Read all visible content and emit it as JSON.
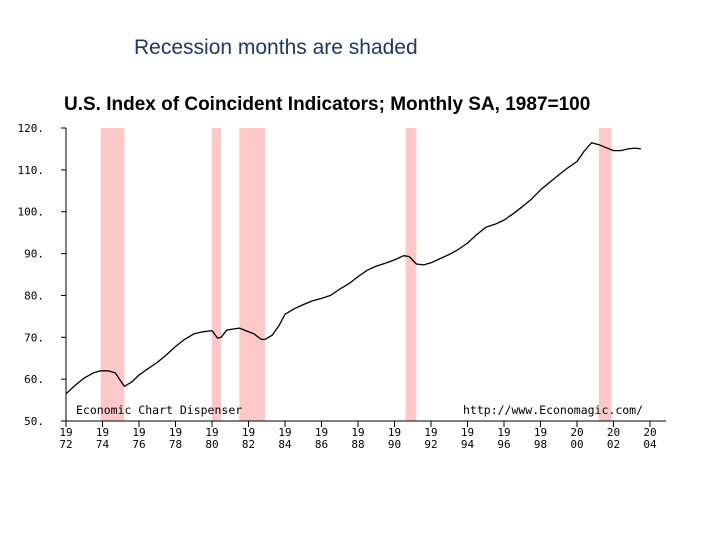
{
  "caption": "Recession months are shaded",
  "chart_data": {
    "type": "line",
    "title": "U.S. Index of Coincident Indicators; Monthly SA, 1987=100",
    "xlim": [
      1972,
      2004
    ],
    "ylim": [
      50,
      120
    ],
    "y_ticks": [
      50,
      60,
      70,
      80,
      90,
      100,
      110,
      120
    ],
    "y_tick_labels": [
      "50.",
      "60.",
      "70.",
      "80.",
      "90.",
      "100.",
      "110.",
      "120."
    ],
    "x_ticks": [
      1972,
      1974,
      1976,
      1978,
      1980,
      1982,
      1984,
      1986,
      1988,
      1990,
      1992,
      1994,
      1996,
      1998,
      2000,
      2002,
      2004
    ],
    "x_tick_top": [
      "19",
      "19",
      "19",
      "19",
      "19",
      "19",
      "19",
      "19",
      "19",
      "19",
      "19",
      "19",
      "19",
      "19",
      "20",
      "20",
      "20"
    ],
    "x_tick_bottom": [
      "72",
      "74",
      "76",
      "78",
      "80",
      "82",
      "84",
      "86",
      "88",
      "90",
      "92",
      "94",
      "96",
      "98",
      "00",
      "02",
      "04"
    ],
    "recession_color": "#ffc8c8",
    "line_color": "#000000",
    "recessions": [
      {
        "start": 1973.9,
        "end": 1975.2
      },
      {
        "start": 1980.0,
        "end": 1980.5
      },
      {
        "start": 1981.5,
        "end": 1982.9
      },
      {
        "start": 1990.6,
        "end": 1991.2
      },
      {
        "start": 2001.2,
        "end": 2001.9
      }
    ],
    "series": [
      {
        "x": [
          1972.0,
          1972.5,
          1973.0,
          1973.5,
          1973.9,
          1974.3,
          1974.7,
          1975.0,
          1975.2,
          1975.6,
          1976.0,
          1976.5,
          1977.0,
          1977.5,
          1978.0,
          1978.5,
          1979.0,
          1979.5,
          1980.0,
          1980.3,
          1980.5,
          1980.8,
          1981.2,
          1981.5,
          1981.9,
          1982.3,
          1982.7,
          1982.9,
          1983.3,
          1983.7,
          1984.0,
          1984.5,
          1985.0,
          1985.5,
          1986.0,
          1986.5,
          1987.0,
          1987.5,
          1988.0,
          1988.5,
          1989.0,
          1989.5,
          1990.0,
          1990.5,
          1990.8,
          1991.2,
          1991.6,
          1992.0,
          1992.5,
          1993.0,
          1993.5,
          1994.0,
          1994.5,
          1995.0,
          1995.5,
          1996.0,
          1996.5,
          1997.0,
          1997.5,
          1998.0,
          1998.5,
          1999.0,
          1999.5,
          2000.0,
          2000.4,
          2000.8,
          2001.2,
          2001.6,
          2002.0,
          2002.4,
          2002.8,
          2003.2,
          2003.5
        ],
        "y": [
          56.5,
          58.5,
          60.3,
          61.5,
          62.0,
          62.0,
          61.5,
          59.5,
          58.3,
          59.3,
          61.0,
          62.5,
          64.0,
          65.8,
          67.8,
          69.5,
          70.8,
          71.3,
          71.6,
          69.8,
          70.0,
          71.7,
          72.0,
          72.2,
          71.5,
          70.8,
          69.5,
          69.5,
          70.5,
          73.0,
          75.5,
          76.8,
          77.8,
          78.7,
          79.3,
          80.0,
          81.5,
          82.8,
          84.5,
          86.0,
          87.0,
          87.7,
          88.5,
          89.5,
          89.3,
          87.5,
          87.3,
          87.8,
          88.8,
          89.8,
          91.0,
          92.5,
          94.5,
          96.3,
          97.0,
          98.0,
          99.5,
          101.2,
          103.0,
          105.2,
          107.0,
          108.8,
          110.5,
          112.0,
          114.5,
          116.5,
          116.0,
          115.3,
          114.6,
          114.6,
          115.0,
          115.2,
          115.0
        ]
      }
    ],
    "annotations": [
      "Economic Chart Dispenser",
      "http://www.Economagic.com/"
    ]
  }
}
